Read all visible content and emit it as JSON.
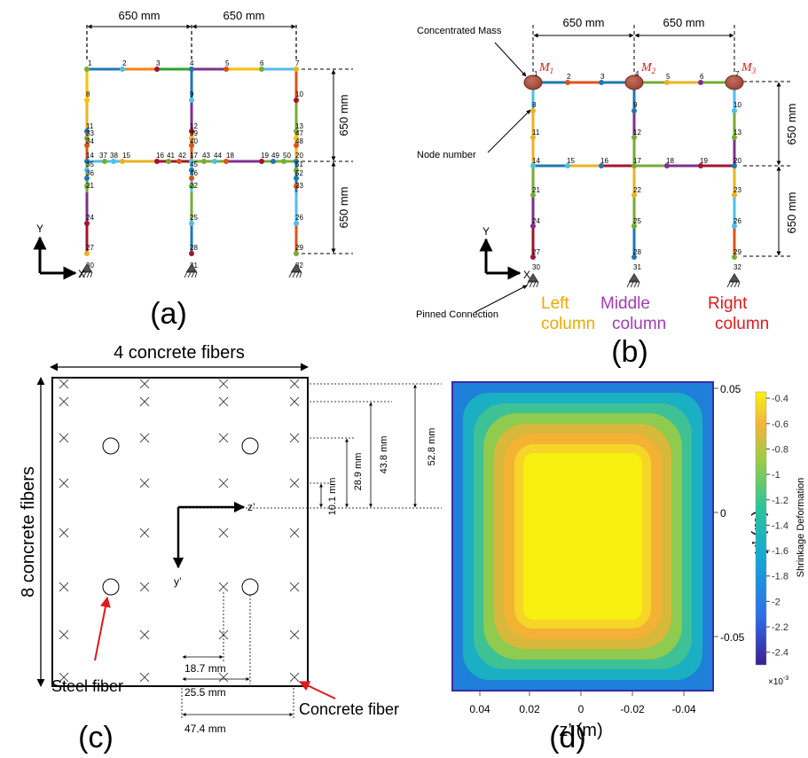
{
  "panels": {
    "a": "(a)",
    "b": "(b)",
    "c": "(c)",
    "d": "(d)"
  },
  "frame_a": {
    "span_top_left": "650 mm",
    "span_top_right": "650 mm",
    "height_upper": "650 mm",
    "height_lower": "650 mm",
    "axis_y": "Y",
    "axis_x": "X",
    "nodes": [
      "1",
      "2",
      "3",
      "4",
      "5",
      "6",
      "7",
      "8",
      "9",
      "10",
      "11",
      "12",
      "13",
      "33",
      "39",
      "47",
      "34",
      "40",
      "48",
      "14",
      "35",
      "37",
      "38",
      "15",
      "16",
      "41",
      "42",
      "17",
      "43",
      "44",
      "18",
      "19",
      "49",
      "50",
      "20",
      "45",
      "51",
      "36",
      "46",
      "52",
      "21",
      "22",
      "23",
      "24",
      "25",
      "26",
      "27",
      "28",
      "29",
      "30",
      "31",
      "32"
    ]
  },
  "frame_b": {
    "span_top_left": "650 mm",
    "span_top_right": "650 mm",
    "height_upper": "650 mm",
    "height_lower": "650 mm",
    "axis_y": "Y",
    "axis_x": "X",
    "mass_label": "Concentrated Mass",
    "node_label": "Node number",
    "pinned_label": "Pinned Connection",
    "masses": [
      "M",
      "M",
      "M"
    ],
    "mass_subscripts": [
      "1",
      "2",
      "3"
    ],
    "left_column": [
      "Left",
      "column"
    ],
    "middle_column": [
      "Middle",
      "column"
    ],
    "right_column": [
      "Right",
      "column"
    ],
    "nodes": [
      "1",
      "2",
      "3",
      "4",
      "5",
      "6",
      "7",
      "8",
      "9",
      "10",
      "11",
      "12",
      "13",
      "14",
      "15",
      "16",
      "17",
      "18",
      "19",
      "20",
      "21",
      "22",
      "23",
      "24",
      "25",
      "26",
      "27",
      "28",
      "29",
      "30",
      "31",
      "32"
    ]
  },
  "section_c": {
    "top_label": "4 concrete fibers",
    "side_label": "8 concrete fibers",
    "axis_z": "z’",
    "axis_y": "y’",
    "dims_vertical": [
      "10.1 mm",
      "28.9 mm",
      "43.8 mm",
      "52.8 mm"
    ],
    "dims_horizontal": [
      "18.7 mm",
      "25.5 mm",
      "47.4 mm"
    ],
    "steel_label": "Steel fiber",
    "concrete_label": "Concrete fiber"
  },
  "heatmap_d": {
    "xlabel": "z’ (m)",
    "ylabel": "y’ (m)",
    "x_ticks": [
      "0.04",
      "0.02",
      "0",
      "-0.02",
      "-0.04"
    ],
    "y_ticks": [
      "0.05",
      "0",
      "-0.05"
    ],
    "colorbar_label": "Shrinkage Deformation",
    "colorbar_ticks": [
      "-0.4",
      "-0.6",
      "-0.8",
      "-1",
      "-1.2",
      "-1.4",
      "-1.6",
      "-1.8",
      "-2",
      "-2.2",
      "-2.4"
    ],
    "colorbar_range": [
      -2.5,
      -0.35
    ],
    "multiplier_base": "×10",
    "multiplier_exp": "-3",
    "colors": {
      "low": "#3f26a1",
      "mid": "#1fb4b6",
      "high": "#f8f010"
    }
  }
}
